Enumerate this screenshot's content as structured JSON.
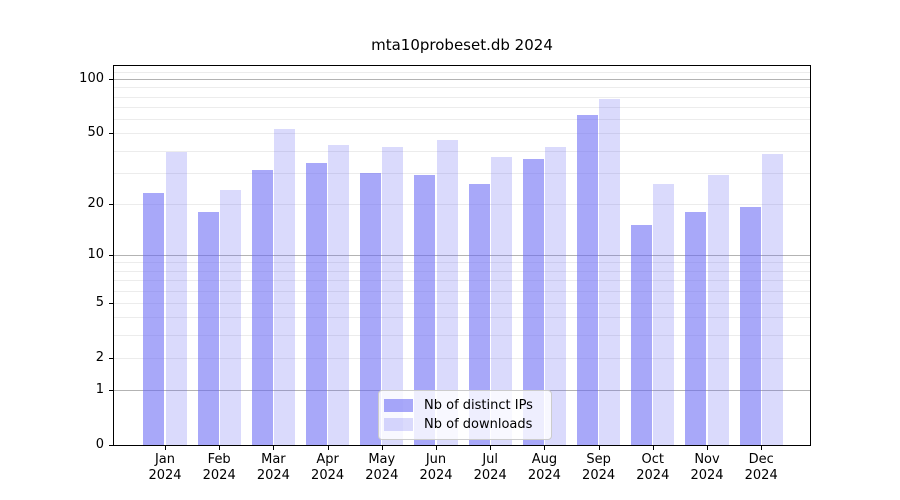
{
  "chart_data": {
    "type": "bar",
    "title": "mta10probeset.db 2024",
    "categories": [
      "Jan",
      "Feb",
      "Mar",
      "Apr",
      "May",
      "Jun",
      "Jul",
      "Aug",
      "Sep",
      "Oct",
      "Nov",
      "Dec"
    ],
    "year_label": "2024",
    "series": [
      {
        "name": "Nb of distinct IPs",
        "values": [
          23,
          18,
          31,
          34,
          30,
          29,
          26,
          36,
          63,
          15,
          18,
          19
        ],
        "color": "rgba(102,102,244,0.57)"
      },
      {
        "name": "Nb of downloads",
        "values": [
          39,
          24,
          53,
          43,
          42,
          46,
          37,
          42,
          78,
          26,
          29,
          38
        ],
        "color": "rgba(102,102,244,0.24)"
      }
    ],
    "yticks": [
      "100",
      "50",
      "20",
      "10",
      "5",
      "2",
      "1",
      "0"
    ],
    "ytick_values": [
      100,
      50,
      20,
      10,
      5,
      2,
      1,
      0
    ],
    "scale": "log10(1+y)",
    "ylim": [
      0,
      118
    ],
    "grid": true,
    "legend_position": "lower center",
    "major_gridline_values": [
      1,
      10,
      100
    ],
    "minor_gridline_values": [
      2,
      3,
      4,
      5,
      6,
      7,
      8,
      9,
      20,
      30,
      40,
      50,
      60,
      70,
      80,
      90,
      110
    ]
  },
  "colors": {
    "background": "#ffffff",
    "bar_distinct_ips": "#a9a9f7",
    "bar_downloads": "#dcdcfa",
    "gridline_major": "#b3b3b3",
    "gridline_minor": "#ececec",
    "axis": "#000000",
    "text": "#111111",
    "legend_border": "#cccccc"
  }
}
